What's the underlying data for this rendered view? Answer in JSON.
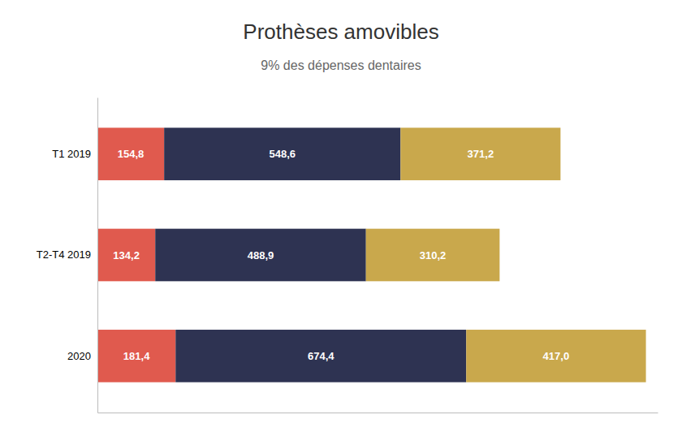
{
  "chart_data": {
    "type": "bar",
    "orientation": "horizontal",
    "stacked": true,
    "title": "Prothèses amovibles",
    "subtitle": "9% des dépenses dentaires",
    "categories": [
      "2020",
      "T2-T4 2019",
      "T1 2019"
    ],
    "series": [
      {
        "color": "#E05A4E",
        "values": [
          181.4,
          134.2,
          154.8
        ],
        "value_labels": [
          "181,4",
          "134,2",
          "154,8"
        ]
      },
      {
        "color": "#2E3352",
        "values": [
          674.4,
          488.9,
          548.6
        ],
        "value_labels": [
          "674,4",
          "488,9",
          "548,6"
        ]
      },
      {
        "color": "#C9A84C",
        "values": [
          417.0,
          310.2,
          371.2
        ],
        "value_labels": [
          "417,0",
          "310,2",
          "371,2"
        ]
      }
    ],
    "xlim": [
      0,
      1300
    ],
    "data_labels": true,
    "grid": false,
    "tick_labels": "y"
  }
}
